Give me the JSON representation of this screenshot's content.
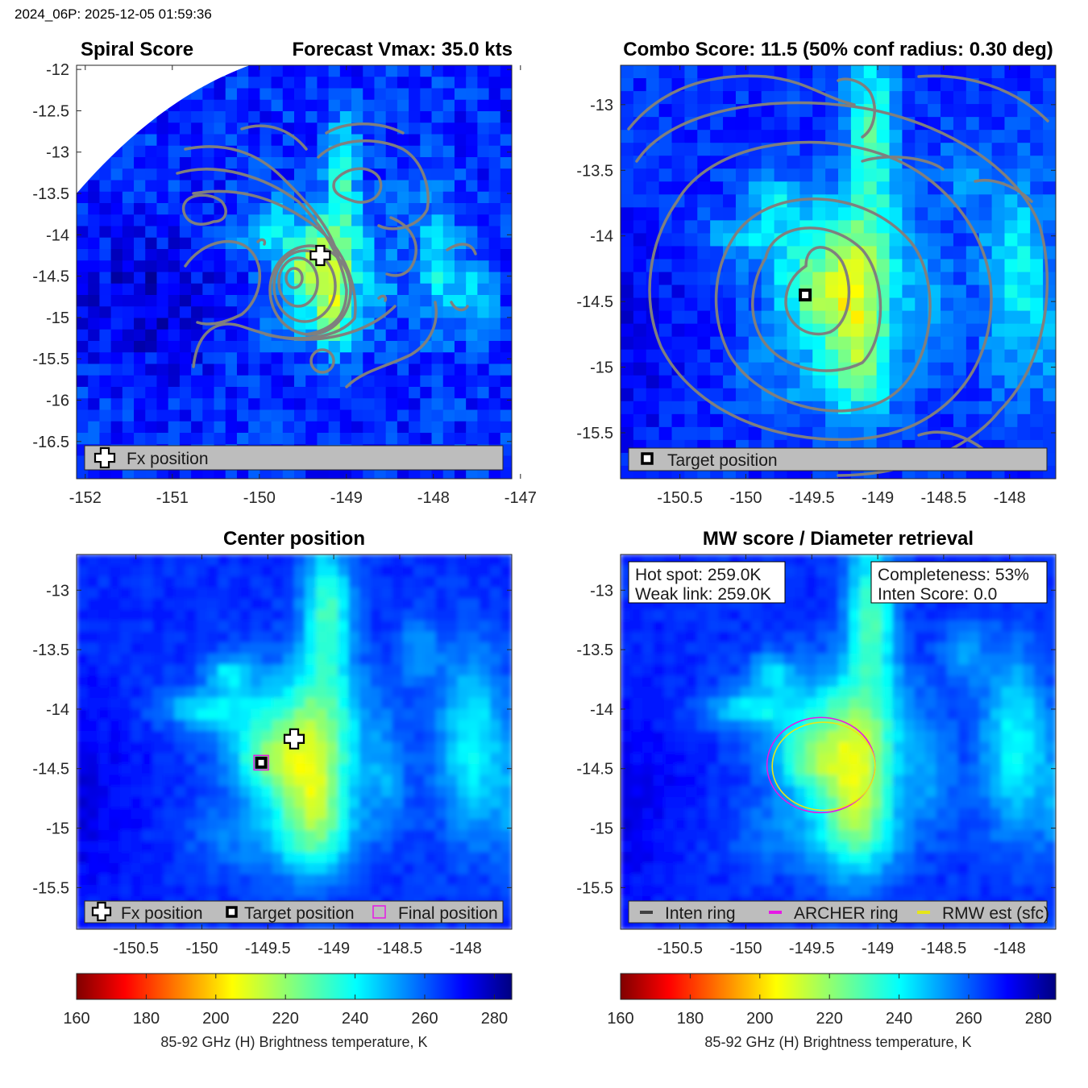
{
  "header": "2024_06P: 2025-12-05 01:59:36",
  "colors": {
    "contour": "#7f7f7f",
    "legend_bg": "#bdbdbd",
    "archer_ring": "#e619e6",
    "rmw_ring": "#e6e619"
  },
  "colorbar": {
    "ticks": [
      160,
      180,
      200,
      220,
      240,
      260,
      280
    ],
    "min": 160,
    "max": 285,
    "label": "85-92 GHz (H) Brightness temperature, K",
    "colormap": "jet-reversed"
  },
  "chart_data": [
    {
      "id": "spiral",
      "type": "heatmap",
      "title_left": "Spiral Score",
      "title_right": "Forecast Vmax: 35.0 kts",
      "xlim": [
        -152.1,
        -147.1
      ],
      "ylim": [
        -16.95,
        -11.95
      ],
      "xticks": [
        -152,
        -151,
        -150,
        -149,
        -148,
        -147
      ],
      "yticks": [
        -12,
        -12.5,
        -13,
        -13.5,
        -14,
        -14.5,
        -15,
        -15.5,
        -16,
        -16.5
      ],
      "markers": [
        {
          "type": "fx-cross",
          "lon": -149.3,
          "lat": -14.25
        }
      ],
      "legend": [
        "Fx position"
      ]
    },
    {
      "id": "combo",
      "type": "heatmap",
      "title": "Combo Score: 11.5  (50% conf radius: 0.30 deg)",
      "xlim": [
        -150.95,
        -147.65
      ],
      "ylim": [
        -15.85,
        -12.7
      ],
      "xticks": [
        -150.5,
        -150,
        -149.5,
        -149,
        -148.5,
        -148
      ],
      "yticks": [
        -13,
        -13.5,
        -14,
        -14.5,
        -15,
        -15.5
      ],
      "markers": [
        {
          "type": "target-square",
          "lon": -149.55,
          "lat": -14.45
        }
      ],
      "legend": [
        "Target position"
      ]
    },
    {
      "id": "center",
      "type": "heatmap",
      "title": "Center position",
      "xlim": [
        -150.95,
        -147.65
      ],
      "ylim": [
        -15.85,
        -12.7
      ],
      "xticks": [
        -150.5,
        -150,
        -149.5,
        -149,
        -148.5,
        -148
      ],
      "yticks": [
        -13,
        -13.5,
        -14,
        -14.5,
        -15,
        -15.5
      ],
      "markers": [
        {
          "type": "fx-cross",
          "lon": -149.3,
          "lat": -14.25
        },
        {
          "type": "target-square",
          "lon": -149.55,
          "lat": -14.45
        },
        {
          "type": "final-square",
          "lon": -149.55,
          "lat": -14.45
        }
      ],
      "legend": [
        "Fx position",
        "Target position",
        "Final position"
      ]
    },
    {
      "id": "mw",
      "type": "heatmap",
      "title": "MW score / Diameter retrieval",
      "xlim": [
        -150.95,
        -147.65
      ],
      "ylim": [
        -15.85,
        -12.7
      ],
      "xticks": [
        -150.5,
        -150,
        -149.5,
        -149,
        -148.5,
        -148
      ],
      "yticks": [
        -13,
        -13.5,
        -14,
        -14.5,
        -15,
        -15.5
      ],
      "annotations": {
        "left": [
          "Hot spot: 259.0K",
          "Weak link: 259.0K"
        ],
        "right": [
          "Completeness: 53%",
          "Inten Score: 0.0"
        ]
      },
      "rings": [
        {
          "name": "ARCHER ring",
          "lon": -149.43,
          "lat": -14.47,
          "rx_deg": 0.41,
          "ry_deg": 0.4
        },
        {
          "name": "RMW est (sfc)",
          "lon": -149.41,
          "lat": -14.48,
          "rx_deg": 0.39,
          "ry_deg": 0.37
        }
      ],
      "legend": [
        "Inten ring",
        "ARCHER ring",
        "RMW est (sfc)"
      ]
    }
  ]
}
